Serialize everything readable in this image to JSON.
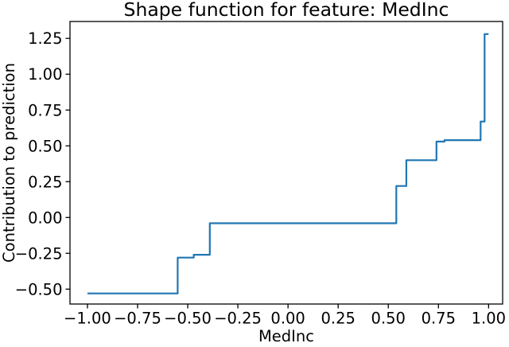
{
  "chart_data": {
    "type": "line",
    "subtype": "step",
    "title": "Shape function for feature: MedInc",
    "xlabel": "MedInc",
    "ylabel": "Contribution to prediction",
    "line_color": "#1f77b4",
    "axis_color": "#000000",
    "background_color": "#ffffff",
    "grid": false,
    "legend_position": "none",
    "xlim": [
      -1.087,
      1.07
    ],
    "ylim": [
      -0.604,
      1.368
    ],
    "x_ticks": [
      -1.0,
      -0.75,
      -0.5,
      -0.25,
      0.0,
      0.25,
      0.5,
      0.75,
      1.0
    ],
    "y_ticks": [
      -0.5,
      -0.25,
      0.0,
      0.25,
      0.5,
      0.75,
      1.0,
      1.25
    ],
    "points": [
      [
        -1.0,
        -0.53
      ],
      [
        -0.55,
        -0.53
      ],
      [
        -0.55,
        -0.28
      ],
      [
        -0.47,
        -0.28
      ],
      [
        -0.47,
        -0.26
      ],
      [
        -0.39,
        -0.26
      ],
      [
        -0.39,
        -0.04
      ],
      [
        0.54,
        -0.04
      ],
      [
        0.54,
        0.22
      ],
      [
        0.59,
        0.22
      ],
      [
        0.59,
        0.4
      ],
      [
        0.74,
        0.4
      ],
      [
        0.74,
        0.53
      ],
      [
        0.78,
        0.53
      ],
      [
        0.78,
        0.54
      ],
      [
        0.96,
        0.54
      ],
      [
        0.96,
        0.67
      ],
      [
        0.98,
        0.67
      ],
      [
        0.98,
        1.28
      ],
      [
        1.0,
        1.28
      ]
    ]
  }
}
